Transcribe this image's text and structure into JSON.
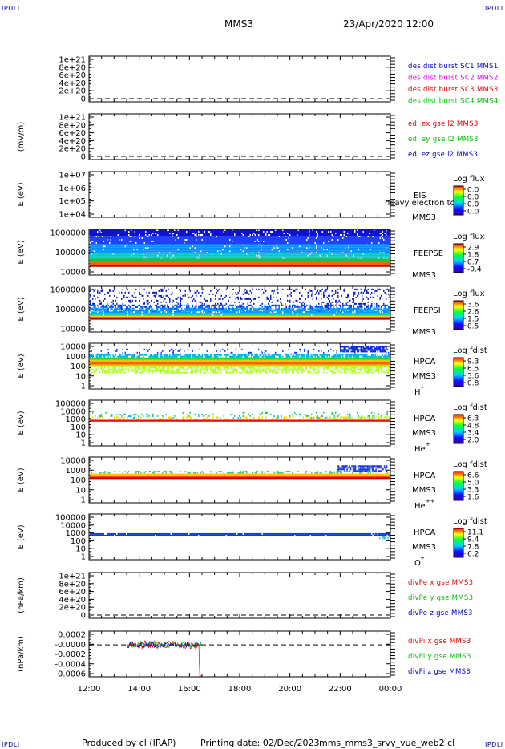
{
  "header": {
    "corner_tl": "IPDLI",
    "corner_tr": "IPDLI",
    "corner_bl": "IPDLI",
    "corner_br": "IPDLI",
    "spacecraft": "MMS3",
    "datetime": "23/Apr/2020 12:00"
  },
  "footer": {
    "produced_by": "Produced by cl (IRAP)",
    "printing_date": "Printing date: 02/Dec/2023",
    "script_name": "mms_mms3_srvy_vue_web2.cl"
  },
  "colors": {
    "red": "#e00000",
    "green": "#00c000",
    "blue": "#0000c0",
    "magenta": "#e000e0",
    "axis": "#000000"
  },
  "chart_data": {
    "type": "multi-panel",
    "time_range": [
      "12:00",
      "00:00"
    ],
    "x_ticks": [
      "12:00",
      "14:00",
      "16:00",
      "18:00",
      "20:00",
      "22:00",
      "00:00"
    ],
    "panels": [
      {
        "kind": "line",
        "ylabel": "",
        "yticks": [
          "1e+21",
          "8e+20",
          "6e+20",
          "4e+20",
          "2e+20",
          "0"
        ],
        "zero_line": true,
        "legend": [
          {
            "text": "des dist burst SC1 MMS1",
            "color": "#0000c0"
          },
          {
            "text": "des dist burst SC2 MMS2",
            "color": "#e000e0"
          },
          {
            "text": "des dist burst SC3 MMS3",
            "color": "#e00000"
          },
          {
            "text": "des dist burst SC4 MMS4",
            "color": "#00c000"
          }
        ]
      },
      {
        "kind": "line",
        "ylabel": "(mV/m)",
        "yticks": [
          "1e+21",
          "8e+20",
          "6e+20",
          "4e+20",
          "2e+20",
          "0"
        ],
        "zero_line": true,
        "legend": [
          {
            "text": "edi ex gse l2 MMS3",
            "color": "#e00000"
          },
          {
            "text": "edi ey gse l2 MMS3",
            "color": "#00c000"
          },
          {
            "text": "edi ez gse l2 MMS3",
            "color": "#0000c0"
          }
        ]
      },
      {
        "kind": "spectrogram",
        "ylabel": "E (eV)",
        "yticks": [
          "1e+07",
          "1e+06",
          "1e+05",
          "1e+04"
        ],
        "instrument": "EIS",
        "overlay": "heavy electron to",
        "spacecraft": "MMS3",
        "species": "",
        "scale_label": "Log flux",
        "scale_ticks": [
          "0.0",
          "0.0",
          "0.0",
          "0.0"
        ],
        "bands": []
      },
      {
        "kind": "spectrogram",
        "ylabel": "E (eV)",
        "yticks": [
          "1000000",
          "100000",
          "10000"
        ],
        "instrument": "FEEPSE",
        "overlay": "",
        "spacecraft": "MMS3",
        "species": "",
        "scale_label": "Log flux",
        "scale_ticks": [
          "2.9",
          "1.8",
          "0.7",
          "-0.4"
        ],
        "bands": [
          {
            "from": 0.0,
            "to": 0.14,
            "start": 0.0,
            "end": 1.0,
            "color": "#1010d0",
            "density": 0.9
          },
          {
            "from": 0.14,
            "to": 0.32,
            "start": 0.0,
            "end": 1.0,
            "color": "#2040ff",
            "density": 0.95
          },
          {
            "from": 0.32,
            "to": 0.52,
            "start": 0.0,
            "end": 1.0,
            "color": "#0090ff",
            "density": 0.95
          },
          {
            "from": 0.52,
            "to": 0.64,
            "start": 0.0,
            "end": 1.0,
            "color": "#00c8c8",
            "density": 0.95
          },
          {
            "from": 0.64,
            "to": 0.72,
            "start": 0.0,
            "end": 1.0,
            "color": "#20c040",
            "density": 1.0
          },
          {
            "from": 0.72,
            "to": 0.78,
            "start": 0.0,
            "end": 1.0,
            "color": "#ff6000",
            "density": 1.0
          },
          {
            "from": 0.78,
            "to": 0.82,
            "start": 0.0,
            "end": 1.0,
            "color": "#c00000",
            "density": 1.0
          }
        ]
      },
      {
        "kind": "spectrogram",
        "ylabel": "E (eV)",
        "yticks": [
          "1000000",
          "100000",
          "10000"
        ],
        "instrument": "FEEPSI",
        "overlay": "",
        "spacecraft": "MMS3",
        "species": "",
        "scale_label": "Log flux",
        "scale_ticks": [
          "3.6",
          "2.6",
          "1.5",
          "0.5"
        ],
        "bands": [
          {
            "from": 0.05,
            "to": 0.48,
            "start": 0.0,
            "end": 1.0,
            "color": "#1020c0",
            "density": 0.18
          },
          {
            "from": 0.4,
            "to": 0.56,
            "start": 0.0,
            "end": 1.0,
            "color": "#0060ff",
            "density": 0.45
          },
          {
            "from": 0.48,
            "to": 0.58,
            "start": 0.0,
            "end": 1.0,
            "color": "#00a0ff",
            "density": 0.7
          },
          {
            "from": 0.58,
            "to": 0.64,
            "start": 0.0,
            "end": 1.0,
            "color": "#00d0a0",
            "density": 0.95
          },
          {
            "from": 0.64,
            "to": 0.67,
            "start": 0.0,
            "end": 1.0,
            "color": "#ffd000",
            "density": 1.0
          },
          {
            "from": 0.67,
            "to": 0.7,
            "start": 0.0,
            "end": 1.0,
            "color": "#ff4000",
            "density": 1.0
          },
          {
            "from": 0.7,
            "to": 0.73,
            "start": 0.0,
            "end": 1.0,
            "color": "#b00000",
            "density": 1.0
          }
        ]
      },
      {
        "kind": "spectrogram",
        "ylabel": "E (eV)",
        "yticks": [
          "10000",
          "1000",
          "100",
          "10",
          "1"
        ],
        "instrument": "HPCA",
        "overlay": "",
        "spacecraft": "MMS3",
        "species": "H",
        "charge": "+",
        "scale_label": "Log fdist",
        "scale_ticks": [
          "9.3",
          "6.5",
          "3.6",
          "0.8"
        ],
        "bands": [
          {
            "from": 0.06,
            "to": 0.2,
            "start": 0.83,
            "end": 0.99,
            "color": "#0020e0",
            "density": 0.85
          },
          {
            "from": 0.12,
            "to": 0.24,
            "start": 0.0,
            "end": 1.0,
            "color": "#2040ff",
            "density": 0.12
          },
          {
            "from": 0.24,
            "to": 0.32,
            "start": 0.0,
            "end": 1.0,
            "color": "#00b0e0",
            "density": 0.7
          },
          {
            "from": 0.32,
            "to": 0.36,
            "start": 0.0,
            "end": 1.0,
            "color": "#30d030",
            "density": 1.0
          },
          {
            "from": 0.36,
            "to": 0.42,
            "start": 0.0,
            "end": 1.0,
            "color": "#ffc000",
            "density": 1.0
          },
          {
            "from": 0.42,
            "to": 0.47,
            "start": 0.0,
            "end": 1.0,
            "color": "#ff6000",
            "density": 1.0
          },
          {
            "from": 0.47,
            "to": 0.52,
            "start": 0.0,
            "end": 1.0,
            "color": "#c0e000",
            "density": 1.0
          },
          {
            "from": 0.52,
            "to": 0.64,
            "start": 0.0,
            "end": 1.0,
            "color": "#b0ff30",
            "density": 0.55
          }
        ]
      },
      {
        "kind": "spectrogram",
        "ylabel": "E (eV)",
        "yticks": [
          "100000",
          "10000",
          "1000",
          "100",
          "10",
          "1"
        ],
        "instrument": "HPCA",
        "overlay": "",
        "spacecraft": "MMS3",
        "species": "He",
        "charge": "+",
        "scale_label": "Log fdist",
        "scale_ticks": [
          "6.3",
          "4.8",
          "3.4",
          "2.0"
        ],
        "bands": [
          {
            "from": 0.26,
            "to": 0.34,
            "start": 0.0,
            "end": 1.0,
            "color": "#20d040",
            "density": 0.08
          },
          {
            "from": 0.3,
            "to": 0.4,
            "start": 0.0,
            "end": 1.0,
            "color": "#00c0e0",
            "density": 0.12
          },
          {
            "from": 0.36,
            "to": 0.43,
            "start": 0.0,
            "end": 1.0,
            "color": "#ffd000",
            "density": 0.3
          },
          {
            "from": 0.43,
            "to": 0.47,
            "start": 0.0,
            "end": 1.0,
            "color": "#e01010",
            "density": 1.0
          },
          {
            "from": 0.36,
            "to": 0.43,
            "start": 0.78,
            "end": 1.0,
            "color": "#b0ff30",
            "density": 0.5
          }
        ]
      },
      {
        "kind": "spectrogram",
        "ylabel": "E (eV)",
        "yticks": [
          "10000",
          "1000",
          "100",
          "10",
          "1"
        ],
        "instrument": "HPCA",
        "overlay": "",
        "spacecraft": "MMS3",
        "species": "He",
        "charge": "++",
        "scale_label": "Log fdist",
        "scale_ticks": [
          "6.6",
          "5.0",
          "3.3",
          "1.6"
        ],
        "bands": [
          {
            "from": 0.18,
            "to": 0.3,
            "start": 0.82,
            "end": 0.99,
            "color": "#1030e0",
            "density": 0.75
          },
          {
            "from": 0.3,
            "to": 0.36,
            "start": 0.0,
            "end": 1.0,
            "color": "#40d040",
            "density": 0.3
          },
          {
            "from": 0.36,
            "to": 0.4,
            "start": 0.0,
            "end": 1.0,
            "color": "#ffd000",
            "density": 1.0
          },
          {
            "from": 0.4,
            "to": 0.44,
            "start": 0.0,
            "end": 1.0,
            "color": "#ff5000",
            "density": 1.0
          },
          {
            "from": 0.44,
            "to": 0.48,
            "start": 0.0,
            "end": 1.0,
            "color": "#d00000",
            "density": 1.0
          }
        ]
      },
      {
        "kind": "spectrogram",
        "ylabel": "E (eV)",
        "yticks": [
          "100000",
          "10000",
          "1000",
          "100",
          "10",
          "1"
        ],
        "instrument": "HPCA",
        "overlay": "",
        "spacecraft": "MMS3",
        "species": "O",
        "charge": "+",
        "scale_label": "Log fdist",
        "scale_ticks": [
          "11.1",
          "9.4",
          "7.8",
          "6.2"
        ],
        "bands": [
          {
            "from": 0.42,
            "to": 0.48,
            "start": 0.0,
            "end": 1.0,
            "color": "#1040d0",
            "density": 0.95
          },
          {
            "from": 0.48,
            "to": 0.52,
            "start": 0.96,
            "end": 1.0,
            "color": "#20c0e0",
            "density": 0.6
          }
        ]
      },
      {
        "kind": "line",
        "ylabel": "(nPa/km)",
        "yticks": [
          "1e+21",
          "8e+20",
          "6e+20",
          "4e+20",
          "2e+20",
          "0"
        ],
        "zero_line": true,
        "legend": [
          {
            "text": "divPe x gse MMS3",
            "color": "#e00000"
          },
          {
            "text": "divPe y gse MMS3",
            "color": "#00c000"
          },
          {
            "text": "divPe z gse MMS3",
            "color": "#0000c0"
          }
        ]
      },
      {
        "kind": "timeseries",
        "ylabel": "(nPa/km)",
        "yticks": [
          "0.0002",
          "-0.0000",
          "-0.0002",
          "-0.0004",
          "-0.0006"
        ],
        "ylim": [
          -0.0007,
          0.0003
        ],
        "data_span": [
          "13:30",
          "16:30"
        ],
        "zero_line": true,
        "legend": [
          {
            "text": "divPi x gse MMS3",
            "color": "#e00000"
          },
          {
            "text": "divPi y gse MMS3",
            "color": "#00c000"
          },
          {
            "text": "divPi z gse MMS3",
            "color": "#0000c0"
          }
        ]
      }
    ]
  }
}
